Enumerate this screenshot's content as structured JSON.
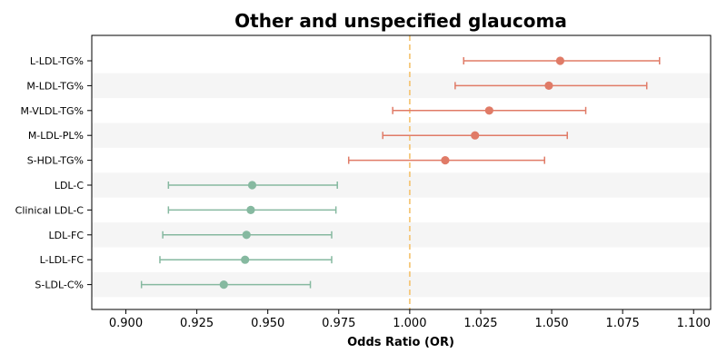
{
  "chart_data": {
    "type": "forest",
    "title": "Other and unspecified glaucoma",
    "xlabel": "Odds Ratio (OR)",
    "ylabel": "",
    "xlim": [
      0.888,
      1.106
    ],
    "x_ticks": [
      0.9,
      0.925,
      0.95,
      0.975,
      1.0,
      1.025,
      1.05,
      1.075,
      1.1
    ],
    "x_tick_labels": [
      "0.900",
      "0.925",
      "0.950",
      "0.975",
      "1.000",
      "1.025",
      "1.050",
      "1.075",
      "1.100"
    ],
    "reference_line": 1.0,
    "grid": false,
    "row_banding": true,
    "colors": {
      "positive": "#e07b67",
      "negative": "#86b9a0",
      "reference": "#f5c77a",
      "band": "#f5f5f5"
    },
    "categories": [
      "L-LDL-TG%",
      "M-LDL-TG%",
      "M-VLDL-TG%",
      "M-LDL-PL%",
      "S-HDL-TG%",
      "LDL-C",
      "Clinical LDL-C",
      "LDL-FC",
      "L-LDL-FC",
      "S-LDL-C%"
    ],
    "values": [
      1.053,
      1.049,
      1.028,
      1.023,
      1.0125,
      0.9445,
      0.944,
      0.9425,
      0.942,
      0.9345
    ],
    "ci_lower": [
      1.019,
      1.016,
      0.994,
      0.9905,
      0.9785,
      0.915,
      0.915,
      0.913,
      0.912,
      0.9055
    ],
    "ci_upper": [
      1.088,
      1.0835,
      1.062,
      1.0555,
      1.0475,
      0.9745,
      0.974,
      0.9725,
      0.9725,
      0.965
    ]
  }
}
